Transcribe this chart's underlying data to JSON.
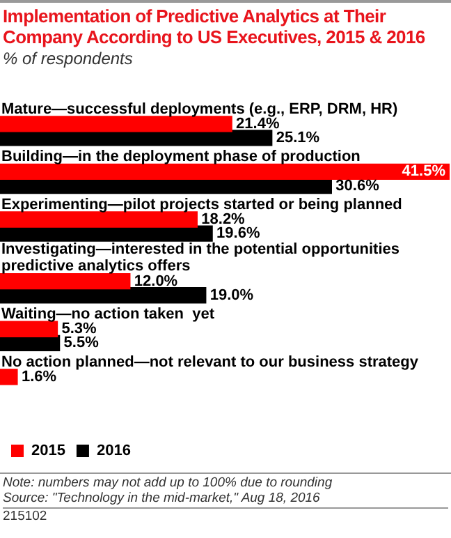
{
  "chart_data": {
    "type": "bar",
    "orientation": "horizontal",
    "title": "Implementation of Predictive Analytics at Their Company According to US Executives, 2015 & 2016",
    "subtitle": "% of respondents",
    "categories": [
      "Mature—successful deployments (e.g., ERP, DRM, HR)",
      "Building—in the deployment phase of production",
      "Experimenting—pilot projects started or being planned",
      "Investigating—interested in the potential opportunities predictive analytics offers",
      "Waiting—no action taken  yet",
      "No action planned—not relevant to our business strategy"
    ],
    "series": [
      {
        "name": "2015",
        "color": "#ff0000",
        "values": [
          21.4,
          41.5,
          18.2,
          12.0,
          5.3,
          1.6
        ],
        "value_labels": [
          "21.4%",
          "41.5%",
          "18.2%",
          "12.0%",
          "5.3%",
          "1.6%"
        ]
      },
      {
        "name": "2016",
        "color": "#000000",
        "values": [
          25.1,
          30.6,
          19.6,
          19.0,
          5.5,
          null
        ],
        "value_labels": [
          "25.1%",
          "30.6%",
          "19.6%",
          "19.0%",
          "5.5%",
          null
        ]
      }
    ],
    "legend": "bottom",
    "annotations": [
      "Note: numbers may not add up to 100% due to rounding",
      "Source: \"Technology in the mid-market,\" Aug 18, 2016",
      "215102"
    ]
  }
}
